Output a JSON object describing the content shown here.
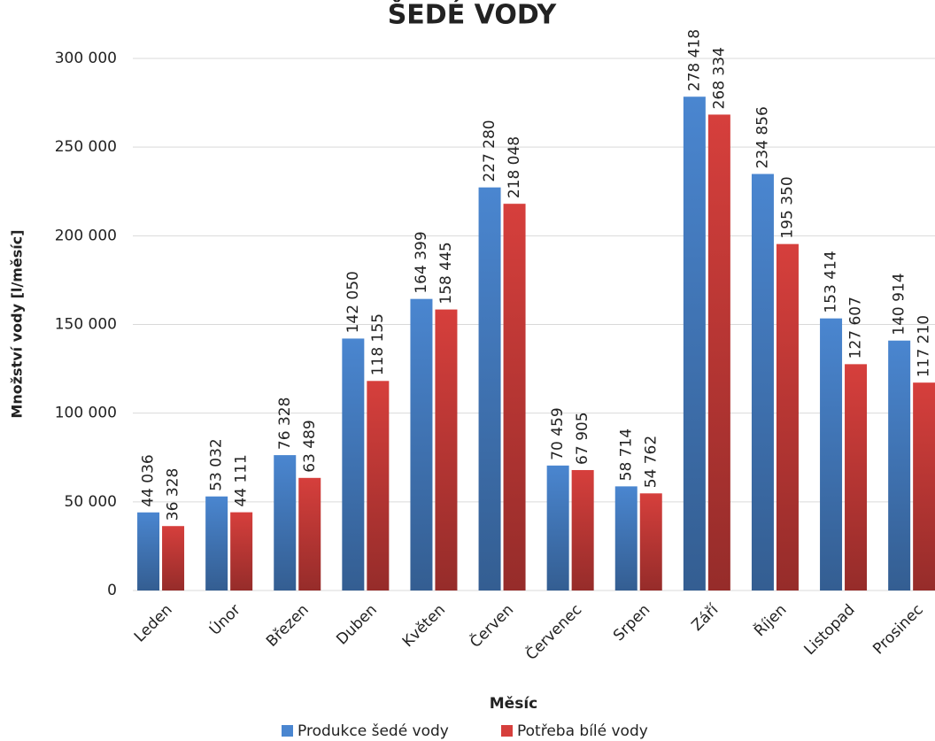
{
  "chart_data": {
    "type": "bar",
    "title": "ŠEDÉ VODY",
    "x_label": "Měsíc",
    "y_label": "Množství vody [l/měsíc]",
    "categories": [
      "Leden",
      "Únor",
      "Březen",
      "Duben",
      "Květen",
      "Červen",
      "Červenec",
      "Srpen",
      "Září",
      "Říjen",
      "Listopad",
      "Prosinec"
    ],
    "series": [
      {
        "name": "Produkce šedé vody",
        "color": "#4a86d0",
        "values": [
          44036,
          53032,
          76328,
          142050,
          164399,
          227280,
          70459,
          58714,
          278418,
          234856,
          153414,
          140914
        ],
        "value_labels": [
          "44 036",
          "53 032",
          "76 328",
          "142 050",
          "164 399",
          "227 280",
          "70 459",
          "58 714",
          "278 418",
          "234 856",
          "153 414",
          "140 914"
        ]
      },
      {
        "name": "Potřeba bílé vody",
        "color": "#d63f3c",
        "values": [
          36328,
          44111,
          63489,
          118155,
          158445,
          218048,
          67905,
          54762,
          268334,
          195350,
          127607,
          117210
        ],
        "value_labels": [
          "36 328",
          "44 111",
          "63 489",
          "118 155",
          "158 445",
          "218 048",
          "67 905",
          "54 762",
          "268 334",
          "195 350",
          "127 607",
          "117 210"
        ]
      }
    ],
    "ylim": [
      0,
      300000
    ],
    "yticks": [
      0,
      {
        "value": 50000,
        "label": "50 000"
      },
      {
        "value": 100000,
        "label": "100 000"
      },
      {
        "value": 150000,
        "label": "150 000"
      },
      {
        "value": 200000,
        "label": "200 000"
      },
      {
        "value": 250000,
        "label": "250 000"
      },
      {
        "value": 300000,
        "label": "300 000"
      }
    ],
    "grid": true,
    "legend": "bottom"
  }
}
